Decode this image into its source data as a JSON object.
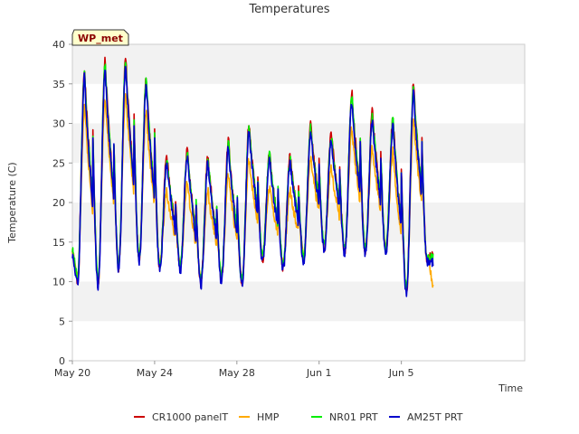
{
  "chart_data": {
    "type": "line",
    "title": "Temperatures",
    "xlabel": "Time",
    "ylabel": "Temperature (C)",
    "badge": "WP_met",
    "xlim": [
      0,
      22.0
    ],
    "ylim": [
      0,
      40
    ],
    "yticks": [
      0,
      5,
      10,
      15,
      20,
      25,
      30,
      35,
      40
    ],
    "xticks": [
      {
        "x": 0,
        "label": "May 20"
      },
      {
        "x": 4,
        "label": "May 24"
      },
      {
        "x": 8,
        "label": "May 28"
      },
      {
        "x": 12,
        "label": "Jun 1"
      },
      {
        "x": 16,
        "label": "Jun 5"
      }
    ],
    "x_units": "days since May 20",
    "legend_position": "bottom",
    "grid": "alternating horizontal bands",
    "daily_extremes": [
      {
        "day": "May 20",
        "min": 9.5,
        "max": 36.0
      },
      {
        "day": "May 21",
        "min": 9.5,
        "max": 37.0
      },
      {
        "day": "May 22",
        "min": 11.5,
        "max": 37.5
      },
      {
        "day": "May 23",
        "min": 12.5,
        "max": 35.0
      },
      {
        "day": "May 24",
        "min": 11.5,
        "max": 25.0
      },
      {
        "day": "May 25",
        "min": 11.5,
        "max": 26.0
      },
      {
        "day": "May 26",
        "min": 9.5,
        "max": 25.0
      },
      {
        "day": "May 27",
        "min": 10.0,
        "max": 27.0
      },
      {
        "day": "May 28",
        "min": 9.5,
        "max": 29.0
      },
      {
        "day": "May 29",
        "min": 12.5,
        "max": 25.5
      },
      {
        "day": "May 30",
        "min": 11.5,
        "max": 25.0
      },
      {
        "day": "May 31",
        "min": 12.5,
        "max": 29.0
      },
      {
        "day": "Jun 1",
        "min": 14.0,
        "max": 28.0
      },
      {
        "day": "Jun 2",
        "min": 13.5,
        "max": 33.0
      },
      {
        "day": "Jun 3",
        "min": 13.5,
        "max": 30.5
      },
      {
        "day": "Jun 4",
        "min": 13.5,
        "max": 30.0
      },
      {
        "day": "Jun 5",
        "min": 8.5,
        "max": 34.0
      },
      {
        "day": "Jun 6",
        "min": 12.5,
        "max": 12.5
      }
    ],
    "series": [
      {
        "name": "CR1000 panelT",
        "color": "#cc0000",
        "offset_max": 1.0,
        "offset_min": 0.3,
        "seed": 1
      },
      {
        "name": "HMP",
        "color": "#ffaa00",
        "offset_max": -3.5,
        "offset_min": 0.8,
        "seed": 2
      },
      {
        "name": "NR01 PRT",
        "color": "#00ee00",
        "offset_max": 0.5,
        "offset_min": 0.6,
        "seed": 3
      },
      {
        "name": "AM25T PRT",
        "color": "#0000cc",
        "offset_max": 0.0,
        "offset_min": 0.0,
        "seed": 4
      }
    ],
    "end_x": 17.55
  }
}
